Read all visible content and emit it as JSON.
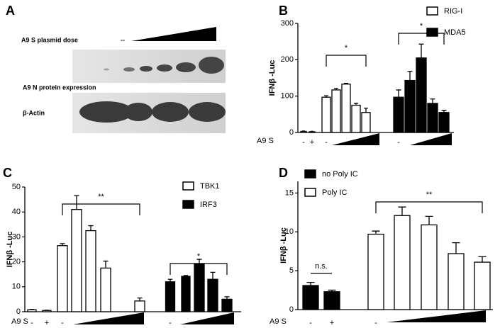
{
  "panel_a": {
    "panel": "A",
    "dose_label": "A9 S plasmid dose",
    "control_label": "--",
    "blot_labels": [
      "A9 N protein expression",
      "β-Actin"
    ]
  },
  "chart_data": [
    {
      "panel": "B",
      "type": "bar",
      "y_label": "IFNβ -Luc",
      "x_label": "A9 S",
      "categories": [
        "-",
        "+",
        "-",
        null,
        null,
        null,
        null,
        "-",
        null,
        null,
        null,
        null
      ],
      "series": [
        {
          "name": "RIG-I",
          "color": "#ffffff",
          "values": [
            3,
            2,
            97,
            117,
            133,
            75,
            55,
            null,
            null,
            null,
            null,
            null
          ],
          "errors": [
            1,
            1,
            4,
            4,
            2,
            5,
            12,
            null,
            null,
            null,
            null,
            null
          ]
        },
        {
          "name": "MDA5",
          "color": "#000000",
          "values": [
            null,
            null,
            null,
            null,
            null,
            null,
            null,
            97,
            143,
            205,
            80,
            55
          ],
          "errors": [
            null,
            null,
            null,
            null,
            null,
            null,
            null,
            20,
            25,
            38,
            12,
            6
          ]
        }
      ],
      "ylim": [
        0,
        300
      ],
      "yticks": [
        0,
        100,
        200,
        300
      ],
      "annotations": [
        {
          "text": "*",
          "from": 2,
          "to": 6
        },
        {
          "text": "*",
          "from": 7,
          "to": 11
        }
      ]
    },
    {
      "panel": "C",
      "type": "bar",
      "y_label": "IFNβ -Luc",
      "x_label": "A9 S",
      "categories": [
        "-",
        "+",
        "-",
        null,
        null,
        null,
        null,
        "-",
        null,
        null,
        null,
        null
      ],
      "series": [
        {
          "name": "TBK1",
          "color": "#ffffff",
          "values": [
            0.8,
            0.5,
            26.5,
            41,
            32.5,
            17.5,
            4.3,
            null,
            null,
            null,
            null,
            null
          ],
          "errors": [
            0.1,
            0.1,
            0.8,
            5.5,
            2,
            2.8,
            1.2,
            null,
            null,
            null,
            null,
            null
          ]
        },
        {
          "name": "IRF3",
          "color": "#000000",
          "values": [
            null,
            null,
            null,
            null,
            null,
            null,
            null,
            12,
            14.2,
            19.3,
            13,
            5
          ],
          "errors": [
            null,
            null,
            null,
            null,
            null,
            null,
            null,
            1,
            0.3,
            1.7,
            2.8,
            1
          ]
        }
      ],
      "ylim": [
        0,
        50
      ],
      "yticks": [
        0,
        10,
        20,
        30,
        40,
        50
      ],
      "annotations": [
        {
          "text": "**",
          "from": 2,
          "to": 6
        },
        {
          "text": "*",
          "from": 7,
          "to": 11
        }
      ]
    },
    {
      "panel": "D",
      "type": "bar",
      "y_label": "IFNβ -Luc",
      "x_label": "A9 S",
      "categories": [
        "-",
        "+",
        "-",
        null,
        null,
        null,
        null
      ],
      "series": [
        {
          "name": "no Poly IC",
          "color": "#000000",
          "values": [
            3.1,
            2.3,
            null,
            null,
            null,
            null,
            null
          ],
          "errors": [
            0.4,
            0.2,
            null,
            null,
            null,
            null,
            null
          ]
        },
        {
          "name": "Poly IC",
          "color": "#ffffff",
          "values": [
            null,
            null,
            9.7,
            12.1,
            10.9,
            7.2,
            6.1
          ],
          "errors": [
            null,
            null,
            0.4,
            1.1,
            1.1,
            1.4,
            0.7
          ]
        }
      ],
      "ylim": [
        0,
        16.5
      ],
      "yticks": [
        0,
        5,
        10,
        15
      ],
      "annotations": [
        {
          "text": "n.s.",
          "from": 0,
          "to": 1
        },
        {
          "text": "**",
          "from": 2,
          "to": 6
        }
      ]
    }
  ]
}
